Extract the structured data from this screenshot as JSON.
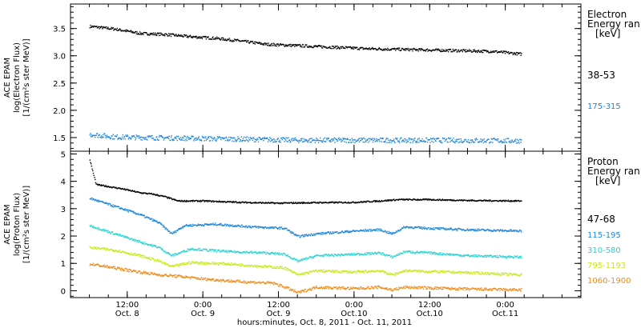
{
  "footer_label": "hours:minutes, Oct. 8, 2011 - Oct. 11, 2011",
  "x_axis": {
    "ticks": [
      {
        "t": 12,
        "time": "12:00",
        "day": "Oct. 8"
      },
      {
        "t": 24,
        "time": "0:00",
        "day": "Oct. 9"
      },
      {
        "t": 36,
        "time": "12:00",
        "day": "Oct. 9"
      },
      {
        "t": 48,
        "time": "0:00",
        "day": "Oct.10"
      },
      {
        "t": 60,
        "time": "12:00",
        "day": "Oct.10"
      },
      {
        "t": 72,
        "time": "0:00",
        "day": "Oct.11"
      }
    ],
    "range_hours": [
      3,
      84
    ],
    "data_end_hours": 74.5
  },
  "chart_data": [
    {
      "type": "scatter",
      "ylabel": [
        "ACE EPAM",
        "log(Electron Flux)",
        "[1/(cm²s ster MeV)]"
      ],
      "ylim": [
        1.25,
        3.95
      ],
      "yticks": [
        "1.5",
        "2.0",
        "2.5",
        "3.0",
        "3.5"
      ],
      "legend_title": [
        "Electron",
        "Energy ran",
        "[keV]"
      ],
      "series": [
        {
          "name": "38-53",
          "color": "#000000",
          "points": [
            [
              6,
              3.55
            ],
            [
              10,
              3.5
            ],
            [
              14,
              3.42
            ],
            [
              18,
              3.4
            ],
            [
              22,
              3.36
            ],
            [
              26,
              3.33
            ],
            [
              30,
              3.28
            ],
            [
              34,
              3.22
            ],
            [
              38,
              3.2
            ],
            [
              42,
              3.18
            ],
            [
              46,
              3.16
            ],
            [
              50,
              3.14
            ],
            [
              54,
              3.13
            ],
            [
              58,
              3.12
            ],
            [
              62,
              3.11
            ],
            [
              66,
              3.1
            ],
            [
              70,
              3.09
            ],
            [
              74.5,
              3.04
            ]
          ],
          "noise": 0.025
        },
        {
          "name": "175-315",
          "color": "#1f86d9",
          "points": [
            [
              6,
              1.57
            ],
            [
              10,
              1.52
            ],
            [
              20,
              1.5
            ],
            [
              30,
              1.48
            ],
            [
              40,
              1.46
            ],
            [
              50,
              1.46
            ],
            [
              60,
              1.46
            ],
            [
              74.5,
              1.45
            ]
          ],
          "noise": 0.045
        }
      ]
    },
    {
      "type": "scatter",
      "ylabel": [
        "ACE EPAM",
        "log(Proton Flux)",
        "[1/(cm²s ster MeV)]"
      ],
      "ylim": [
        -0.25,
        5.1
      ],
      "yticks": [
        "0",
        "1",
        "2",
        "3",
        "4",
        "5"
      ],
      "legend_title": [
        "Proton",
        "Energy ran",
        "[keV]"
      ],
      "series": [
        {
          "name": "47-68",
          "color": "#000000",
          "points": [
            [
              6,
              4.8
            ],
            [
              7,
              3.9
            ],
            [
              11,
              3.75
            ],
            [
              14,
              3.6
            ],
            [
              16,
              3.55
            ],
            [
              18,
              3.45
            ],
            [
              20,
              3.3
            ],
            [
              24,
              3.3
            ],
            [
              30,
              3.25
            ],
            [
              36,
              3.22
            ],
            [
              42,
              3.24
            ],
            [
              48,
              3.25
            ],
            [
              52,
              3.3
            ],
            [
              55,
              3.35
            ],
            [
              60,
              3.35
            ],
            [
              66,
              3.32
            ],
            [
              74.5,
              3.3
            ]
          ],
          "noise": 0.025
        },
        {
          "name": "115-195",
          "color": "#1f86d9",
          "points": [
            [
              6,
              3.4
            ],
            [
              10,
              3.1
            ],
            [
              14,
              2.8
            ],
            [
              17,
              2.5
            ],
            [
              19,
              2.1
            ],
            [
              21,
              2.4
            ],
            [
              26,
              2.45
            ],
            [
              32,
              2.35
            ],
            [
              37,
              2.3
            ],
            [
              39,
              2.0
            ],
            [
              42,
              2.1
            ],
            [
              48,
              2.2
            ],
            [
              52,
              2.25
            ],
            [
              54,
              2.1
            ],
            [
              56,
              2.35
            ],
            [
              60,
              2.3
            ],
            [
              66,
              2.25
            ],
            [
              74.5,
              2.2
            ]
          ],
          "noise": 0.04
        },
        {
          "name": "310-580",
          "color": "#26d3d3",
          "points": [
            [
              6,
              2.4
            ],
            [
              10,
              2.1
            ],
            [
              14,
              1.8
            ],
            [
              17,
              1.6
            ],
            [
              19,
              1.3
            ],
            [
              22,
              1.55
            ],
            [
              28,
              1.45
            ],
            [
              34,
              1.4
            ],
            [
              37,
              1.35
            ],
            [
              39,
              1.1
            ],
            [
              42,
              1.3
            ],
            [
              48,
              1.35
            ],
            [
              52,
              1.4
            ],
            [
              54,
              1.25
            ],
            [
              56,
              1.45
            ],
            [
              60,
              1.4
            ],
            [
              66,
              1.3
            ],
            [
              74.5,
              1.25
            ]
          ],
          "noise": 0.04
        },
        {
          "name": "795-1193",
          "color": "#c8e817",
          "points": [
            [
              6,
              1.6
            ],
            [
              10,
              1.5
            ],
            [
              14,
              1.3
            ],
            [
              17,
              1.1
            ],
            [
              19,
              0.9
            ],
            [
              22,
              1.05
            ],
            [
              28,
              1.0
            ],
            [
              34,
              0.9
            ],
            [
              37,
              0.85
            ],
            [
              39,
              0.6
            ],
            [
              42,
              0.75
            ],
            [
              48,
              0.7
            ],
            [
              52,
              0.75
            ],
            [
              54,
              0.6
            ],
            [
              56,
              0.75
            ],
            [
              60,
              0.72
            ],
            [
              66,
              0.68
            ],
            [
              74.5,
              0.6
            ]
          ],
          "noise": 0.045
        },
        {
          "name": "1060-1900",
          "color": "#f08a18",
          "points": [
            [
              6,
              1.0
            ],
            [
              10,
              0.85
            ],
            [
              14,
              0.7
            ],
            [
              17,
              0.6
            ],
            [
              20,
              0.55
            ],
            [
              24,
              0.45
            ],
            [
              30,
              0.35
            ],
            [
              35,
              0.3
            ],
            [
              37,
              0.15
            ],
            [
              39,
              -0.05
            ],
            [
              42,
              0.15
            ],
            [
              48,
              0.1
            ],
            [
              52,
              0.15
            ],
            [
              54,
              0.05
            ],
            [
              56,
              0.15
            ],
            [
              60,
              0.12
            ],
            [
              66,
              0.08
            ],
            [
              74.5,
              0.05
            ]
          ],
          "noise": 0.05
        }
      ]
    }
  ]
}
